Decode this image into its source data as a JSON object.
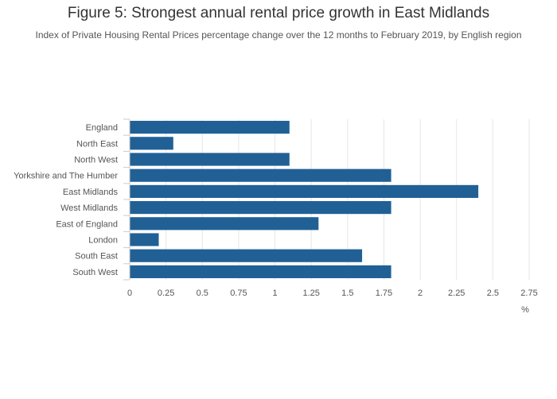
{
  "chart_data": {
    "type": "bar",
    "orientation": "horizontal",
    "title": "Figure 5: Strongest annual rental price growth in East Midlands",
    "subtitle": "Index of Private Housing Rental Prices percentage change over the 12 months to February 2019, by English region",
    "xlabel": "%",
    "ylabel": "",
    "categories": [
      "England",
      "North East",
      "North West",
      "Yorkshire and The Humber",
      "East Midlands",
      "West Midlands",
      "East of England",
      "London",
      "South East",
      "South West"
    ],
    "values": [
      1.1,
      0.3,
      1.1,
      1.8,
      2.4,
      1.8,
      1.3,
      0.2,
      1.6,
      1.8
    ],
    "xlim": [
      0,
      2.75
    ],
    "ticks": [
      0,
      0.25,
      0.5,
      0.75,
      1,
      1.25,
      1.5,
      1.75,
      2,
      2.25,
      2.5,
      2.75
    ],
    "tick_labels": [
      "0",
      "0.25",
      "0.5",
      "0.75",
      "1",
      "1.25",
      "1.5",
      "1.75",
      "2",
      "2.25",
      "2.5",
      "2.75"
    ],
    "grid": true,
    "bar_color": "#206095",
    "grid_color": "#e6e6e6"
  }
}
